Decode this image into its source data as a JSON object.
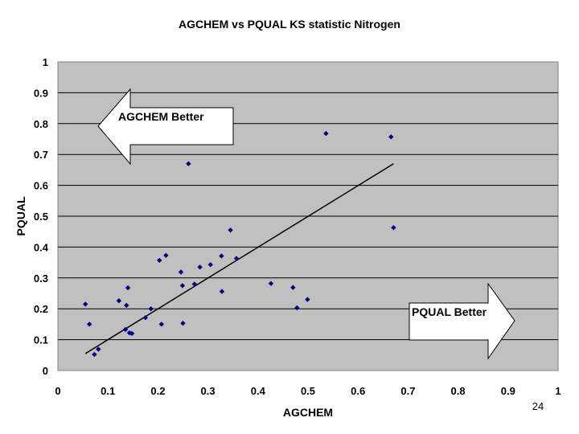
{
  "chart_data": {
    "type": "scatter",
    "title": "AGCHEM vs PQUAL KS statistic Nitrogen",
    "xlabel": "AGCHEM",
    "ylabel": "PQUAL",
    "xlim": [
      0,
      1
    ],
    "ylim": [
      0,
      1
    ],
    "xticks": [
      "0",
      "0.1",
      "0.2",
      "0.3",
      "0.4",
      "0.5",
      "0.6",
      "0.7",
      "0.8",
      "0.9",
      "1"
    ],
    "yticks": [
      "0",
      "0.1",
      "0.2",
      "0.3",
      "0.4",
      "0.5",
      "0.6",
      "0.7",
      "0.8",
      "0.9",
      "1"
    ],
    "grid": true,
    "plot_background": "#c0c0c0",
    "marker_color": "#000080",
    "points": [
      {
        "x": 0.055,
        "y": 0.215
      },
      {
        "x": 0.063,
        "y": 0.15
      },
      {
        "x": 0.073,
        "y": 0.052
      },
      {
        "x": 0.081,
        "y": 0.069
      },
      {
        "x": 0.122,
        "y": 0.226
      },
      {
        "x": 0.135,
        "y": 0.133
      },
      {
        "x": 0.137,
        "y": 0.211
      },
      {
        "x": 0.14,
        "y": 0.268
      },
      {
        "x": 0.143,
        "y": 0.122
      },
      {
        "x": 0.148,
        "y": 0.12
      },
      {
        "x": 0.175,
        "y": 0.171
      },
      {
        "x": 0.186,
        "y": 0.2
      },
      {
        "x": 0.203,
        "y": 0.357
      },
      {
        "x": 0.207,
        "y": 0.15
      },
      {
        "x": 0.216,
        "y": 0.373
      },
      {
        "x": 0.246,
        "y": 0.319
      },
      {
        "x": 0.249,
        "y": 0.275
      },
      {
        "x": 0.25,
        "y": 0.153
      },
      {
        "x": 0.261,
        "y": 0.67
      },
      {
        "x": 0.273,
        "y": 0.28
      },
      {
        "x": 0.284,
        "y": 0.335
      },
      {
        "x": 0.305,
        "y": 0.343
      },
      {
        "x": 0.327,
        "y": 0.371
      },
      {
        "x": 0.328,
        "y": 0.256
      },
      {
        "x": 0.345,
        "y": 0.455
      },
      {
        "x": 0.357,
        "y": 0.363
      },
      {
        "x": 0.426,
        "y": 0.282
      },
      {
        "x": 0.47,
        "y": 0.269
      },
      {
        "x": 0.478,
        "y": 0.203
      },
      {
        "x": 0.499,
        "y": 0.23
      },
      {
        "x": 0.536,
        "y": 0.768
      },
      {
        "x": 0.666,
        "y": 0.757
      },
      {
        "x": 0.671,
        "y": 0.463
      }
    ],
    "trendline": {
      "x1": 0.055,
      "y1": 0.055,
      "x2": 0.671,
      "y2": 0.67
    },
    "annotations": {
      "left_arrow": "AGCHEM Better",
      "right_arrow": "PQUAL Better"
    }
  },
  "page_number": "24"
}
